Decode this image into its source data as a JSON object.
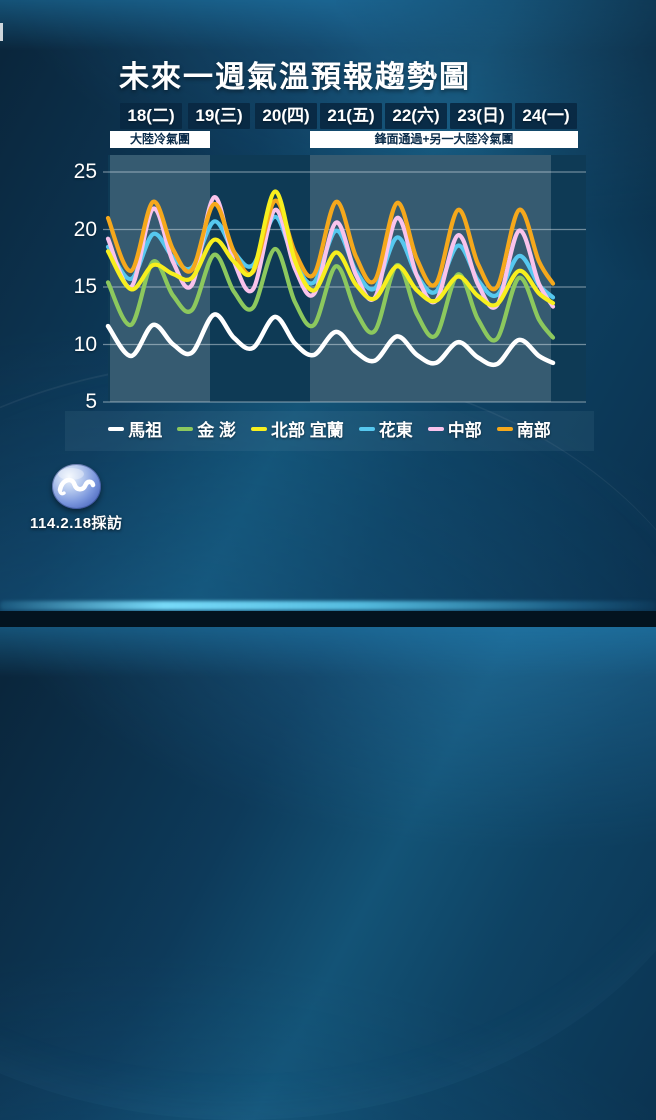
{
  "page": {
    "title": "未來一週氣溫預報趨勢圖",
    "watermark": "114.2.18採訪"
  },
  "chart_data": {
    "type": "line",
    "title": "未來一週氣溫預報趨勢圖",
    "categories": [
      "18(二)",
      "19(三)",
      "20(四)",
      "21(五)",
      "22(六)",
      "23(日)",
      "24(一)"
    ],
    "yticks": [
      25,
      20,
      15,
      10,
      5
    ],
    "ylim": [
      5,
      25
    ],
    "grid": true,
    "legend_position": "bottom",
    "annotations": [
      {
        "label": "大陸冷氣團",
        "from_day": 0,
        "to_day": 1
      },
      {
        "label": "鋒面通過+另一大陸冷氣團",
        "from_day": 3,
        "to_day": 6
      }
    ],
    "series": [
      {
        "name": "馬祖",
        "color": "#ffffff",
        "start": 11.6,
        "daily_lows": [
          9.0,
          9.3,
          9.7,
          9.1,
          8.6,
          8.4,
          8.3
        ],
        "daily_highs": [
          11.7,
          12.6,
          12.4,
          11.1,
          10.7,
          10.2,
          10.4
        ],
        "end": 8.4
      },
      {
        "name": "金 澎",
        "color": "#8cc85e",
        "start": 15.4,
        "daily_lows": [
          11.7,
          13.0,
          13.2,
          11.7,
          11.2,
          10.8,
          10.5
        ],
        "daily_highs": [
          17.2,
          17.8,
          18.3,
          16.8,
          16.9,
          16.1,
          15.8
        ],
        "end": 10.6
      },
      {
        "name": "北部 宜蘭",
        "color": "#f7ef1e",
        "start": 18.1,
        "daily_lows": [
          14.8,
          15.8,
          16.4,
          14.7,
          14.0,
          13.8,
          13.5
        ],
        "daily_highs": [
          16.9,
          19.1,
          23.3,
          18.0,
          16.8,
          15.9,
          16.4
        ],
        "end": 13.6
      },
      {
        "name": "花東",
        "color": "#56c8ef",
        "start": 18.5,
        "daily_lows": [
          15.7,
          16.7,
          16.9,
          15.4,
          14.9,
          14.6,
          14.3
        ],
        "daily_highs": [
          19.6,
          20.7,
          21.1,
          19.9,
          19.3,
          18.6,
          17.7
        ],
        "end": 14.1
      },
      {
        "name": "中部",
        "color": "#f9c3ec",
        "start": 19.2,
        "daily_lows": [
          15.0,
          15.2,
          14.8,
          14.4,
          14.1,
          13.8,
          13.4
        ],
        "daily_highs": [
          21.8,
          22.8,
          21.7,
          20.6,
          21.0,
          19.5,
          19.9
        ],
        "end": 13.3
      },
      {
        "name": "南部",
        "color": "#f5a81c",
        "start": 21.0,
        "daily_lows": [
          16.4,
          16.5,
          16.3,
          16.1,
          15.6,
          15.3,
          15.0
        ],
        "daily_highs": [
          22.4,
          22.2,
          22.5,
          22.4,
          22.3,
          21.7,
          21.7
        ],
        "end": 15.3
      }
    ]
  },
  "colors": {
    "banner_bg": "#ffffff",
    "banner_text": "#0b2d4b",
    "day_label_bg": "#092842",
    "plot_base": "#0e3a55",
    "highlight_band": "rgba(255,255,255,0.17)",
    "gridline": "rgba(230,240,245,0.45)"
  }
}
